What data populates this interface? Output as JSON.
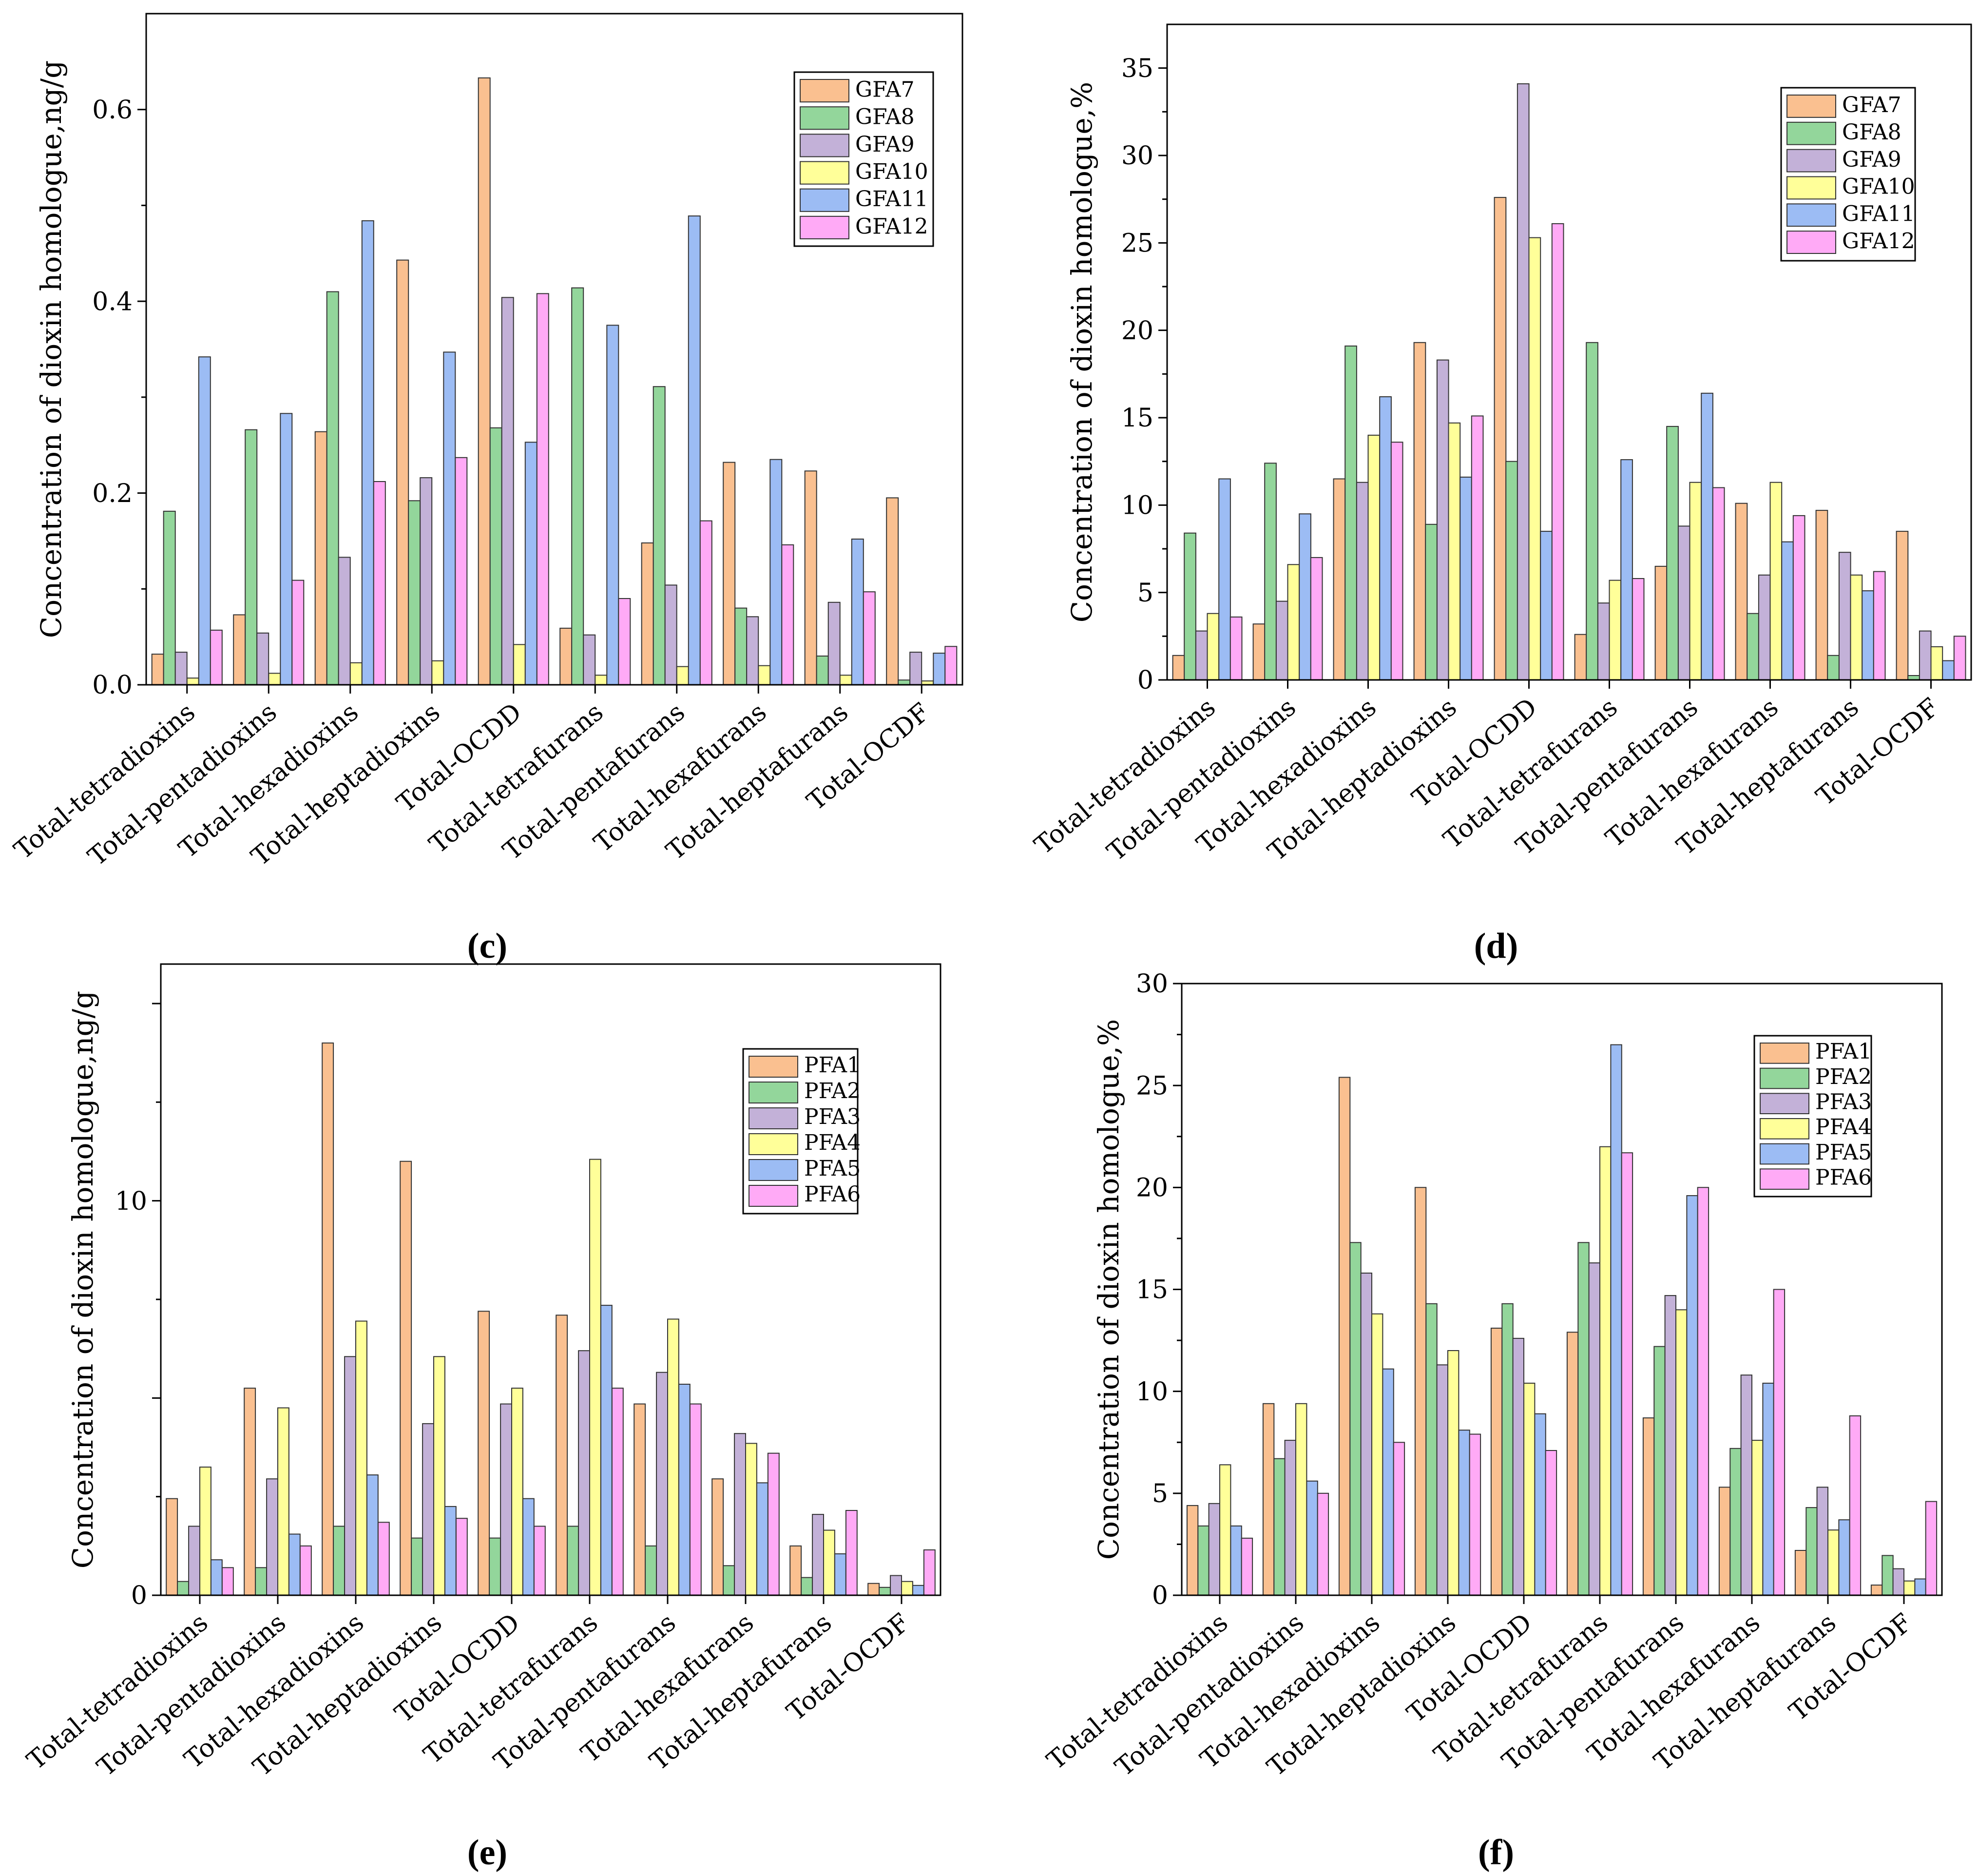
{
  "colors": {
    "series": [
      "#fac090",
      "#93d69b",
      "#c3b1d8",
      "#ffff99",
      "#9cbcf4",
      "#ffaaf6"
    ],
    "axis": "#000000",
    "bar_stroke": "#333333"
  },
  "chart_data": [
    {
      "id": "c",
      "panel_label": "(c)",
      "type": "bar",
      "ylabel": "Concentration of dioxin homologue,ng/g",
      "xlabel": "",
      "ylim": [
        0,
        0.7
      ],
      "yticks": [
        0,
        0.2,
        0.4,
        0.6
      ],
      "ytick_labels": [
        "0.0",
        "0.2",
        "0.4",
        "0.6"
      ],
      "legend_position": "top-right",
      "categories": [
        "Total-tetradioxins",
        "Total-pentadioxins",
        "Total-hexadioxins",
        "Total-heptadioxins",
        "Total-OCDD",
        "Total-tetrafurans",
        "Total-pentafurans",
        "Total-hexafurans",
        "Total-heptafurans",
        "Total-OCDF"
      ],
      "series": [
        {
          "name": "GFA7",
          "values": [
            0.032,
            0.073,
            0.264,
            0.443,
            0.633,
            0.059,
            0.148,
            0.232,
            0.223,
            0.195
          ]
        },
        {
          "name": "GFA8",
          "values": [
            0.181,
            0.266,
            0.41,
            0.192,
            0.268,
            0.414,
            0.311,
            0.08,
            0.03,
            0.005
          ]
        },
        {
          "name": "GFA9",
          "values": [
            0.034,
            0.054,
            0.133,
            0.216,
            0.404,
            0.052,
            0.104,
            0.071,
            0.086,
            0.034
          ]
        },
        {
          "name": "GFA10",
          "values": [
            0.007,
            0.012,
            0.023,
            0.025,
            0.042,
            0.01,
            0.019,
            0.02,
            0.01,
            0.004
          ]
        },
        {
          "name": "GFA11",
          "values": [
            0.342,
            0.283,
            0.484,
            0.347,
            0.253,
            0.375,
            0.489,
            0.235,
            0.152,
            0.033
          ]
        },
        {
          "name": "GFA12",
          "values": [
            0.057,
            0.109,
            0.212,
            0.237,
            0.408,
            0.09,
            0.171,
            0.146,
            0.097,
            0.04
          ]
        }
      ]
    },
    {
      "id": "d",
      "panel_label": "(d)",
      "type": "bar",
      "ylabel": "Concentration of dioxin homologue,%",
      "xlabel": "",
      "ylim": [
        0,
        37.5
      ],
      "yticks": [
        0,
        5,
        10,
        15,
        20,
        25,
        30,
        35
      ],
      "ytick_labels": [
        "0",
        "5",
        "10",
        "15",
        "20",
        "25",
        "30",
        "35"
      ],
      "legend_position": "top-right",
      "categories": [
        "Total-tetradioxins",
        "Total-pentadioxins",
        "Total-hexadioxins",
        "Total-heptadioxins",
        "Total-OCDD",
        "Total-tetrafurans",
        "Total-pentafurans",
        "Total-hexafurans",
        "Total-heptafurans",
        "Total-OCDF"
      ],
      "series": [
        {
          "name": "GFA7",
          "values": [
            1.4,
            3.2,
            11.5,
            19.3,
            27.6,
            2.6,
            6.5,
            10.1,
            9.7,
            8.5
          ]
        },
        {
          "name": "GFA8",
          "values": [
            8.4,
            12.4,
            19.1,
            8.9,
            12.5,
            19.3,
            14.5,
            3.8,
            1.4,
            0.25
          ]
        },
        {
          "name": "GFA9",
          "values": [
            2.8,
            4.5,
            11.3,
            18.3,
            34.1,
            4.4,
            8.8,
            6.0,
            7.3,
            2.8
          ]
        },
        {
          "name": "GFA10",
          "values": [
            3.8,
            6.6,
            14.0,
            14.7,
            25.3,
            5.7,
            11.3,
            11.3,
            6.0,
            1.9
          ]
        },
        {
          "name": "GFA11",
          "values": [
            11.5,
            9.5,
            16.2,
            11.6,
            8.5,
            12.6,
            16.4,
            7.9,
            5.1,
            1.1
          ]
        },
        {
          "name": "GFA12",
          "values": [
            3.6,
            7.0,
            13.6,
            15.1,
            26.1,
            5.8,
            11.0,
            9.4,
            6.2,
            2.5
          ]
        }
      ]
    },
    {
      "id": "e",
      "panel_label": "(e)",
      "type": "bar",
      "ylabel": "Concentration of dioxin homologue,ng/g",
      "xlabel": "",
      "ylim": [
        0,
        16
      ],
      "yticks": [
        0,
        5,
        10,
        15
      ],
      "ytick_labels": [
        "0",
        "",
        "10",
        ""
      ],
      "legend_position": "top-right",
      "categories": [
        "Total-tetradioxins",
        "Total-pentadioxins",
        "Total-hexadioxins",
        "Total-heptadioxins",
        "Total-OCDD",
        "Total-tetrafurans",
        "Total-pentafurans",
        "Total-hexafurans",
        "Total-heptafurans",
        "Total-OCDF"
      ],
      "series": [
        {
          "name": "PFA1",
          "values": [
            2.45,
            5.25,
            14.0,
            11.0,
            7.2,
            7.1,
            4.85,
            2.95,
            1.25,
            0.3
          ]
        },
        {
          "name": "PFA2",
          "values": [
            0.35,
            0.7,
            1.75,
            1.45,
            1.45,
            1.75,
            1.25,
            0.75,
            0.45,
            0.2
          ]
        },
        {
          "name": "PFA3",
          "values": [
            1.75,
            2.95,
            6.05,
            4.35,
            4.85,
            6.2,
            5.65,
            4.1,
            2.05,
            0.5
          ]
        },
        {
          "name": "PFA4",
          "values": [
            3.25,
            4.75,
            6.95,
            6.05,
            5.25,
            11.05,
            7.0,
            3.85,
            1.65,
            0.35
          ]
        },
        {
          "name": "PFA5",
          "values": [
            0.9,
            1.55,
            3.05,
            2.25,
            2.45,
            7.35,
            5.35,
            2.85,
            1.05,
            0.25
          ]
        },
        {
          "name": "PFA6",
          "values": [
            0.7,
            1.25,
            1.85,
            1.95,
            1.75,
            5.25,
            4.85,
            3.6,
            2.15,
            1.15
          ]
        }
      ]
    },
    {
      "id": "f",
      "panel_label": "(f)",
      "type": "bar",
      "ylabel": "Concentration of dioxin homologue,%",
      "xlabel": "",
      "ylim": [
        0,
        30
      ],
      "yticks": [
        0,
        5,
        10,
        15,
        20,
        25,
        30
      ],
      "ytick_labels": [
        "0",
        "5",
        "10",
        "15",
        "20",
        "25",
        "30"
      ],
      "legend_position": "top-right",
      "categories": [
        "Total-tetradioxins",
        "Total-pentadioxins",
        "Total-hexadioxins",
        "Total-heptadioxins",
        "Total-OCDD",
        "Total-tetrafurans",
        "Total-pentafurans",
        "Total-hexafurans",
        "Total-heptafurans",
        "Total-OCDF"
      ],
      "series": [
        {
          "name": "PFA1",
          "values": [
            4.4,
            9.4,
            25.4,
            20.0,
            13.1,
            12.9,
            8.7,
            5.3,
            2.2,
            0.5
          ]
        },
        {
          "name": "PFA2",
          "values": [
            3.4,
            6.7,
            17.3,
            14.3,
            14.3,
            17.3,
            12.2,
            7.2,
            4.3,
            1.95
          ]
        },
        {
          "name": "PFA3",
          "values": [
            4.5,
            7.6,
            15.8,
            11.3,
            12.6,
            16.3,
            14.7,
            10.8,
            5.3,
            1.3
          ]
        },
        {
          "name": "PFA4",
          "values": [
            6.4,
            9.4,
            13.8,
            12.0,
            10.4,
            22.0,
            14.0,
            7.6,
            3.2,
            0.7
          ]
        },
        {
          "name": "PFA5",
          "values": [
            3.4,
            5.6,
            11.1,
            8.1,
            8.9,
            27.0,
            19.6,
            10.4,
            3.7,
            0.8
          ]
        },
        {
          "name": "PFA6",
          "values": [
            2.8,
            5.0,
            7.5,
            7.9,
            7.1,
            21.7,
            20.0,
            15.0,
            8.8,
            4.6
          ]
        }
      ]
    }
  ]
}
